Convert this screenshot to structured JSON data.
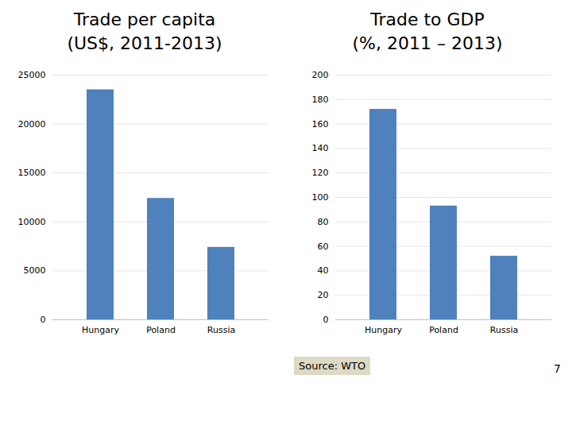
{
  "chart_data": [
    {
      "type": "bar",
      "title": "Trade per capita",
      "subtitle": "(US$, 2011-2013)",
      "categories": [
        "Hungary",
        "Poland",
        "Russia"
      ],
      "values": [
        23500,
        12400,
        7400
      ],
      "color": "#4F81BD",
      "ylim": [
        0,
        25000
      ],
      "yticks": [
        0,
        5000,
        10000,
        15000,
        20000,
        25000
      ],
      "grid": true
    },
    {
      "type": "bar",
      "title": "Trade to GDP",
      "subtitle": "(%, 2011 – 2013)",
      "categories": [
        "Hungary",
        "Poland",
        "Russia"
      ],
      "values": [
        172,
        93,
        52
      ],
      "color": "#4F81BD",
      "ylim": [
        0,
        200
      ],
      "yticks": [
        0,
        20,
        40,
        60,
        80,
        100,
        120,
        140,
        160,
        180,
        200
      ],
      "grid": true,
      "annotations": [
        "Source: WTO",
        "7"
      ]
    }
  ]
}
